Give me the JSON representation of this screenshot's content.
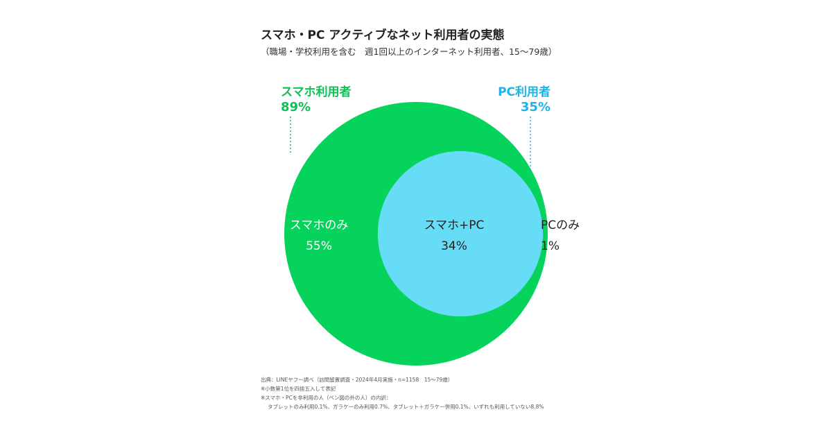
{
  "chart_data": {
    "type": "venn",
    "title": "スマホ・PC アクティブなネット利用者の実態",
    "subtitle": "（職場・学校利用を含む　週1回以上のインターネット利用者、15〜79歳）",
    "sets": [
      {
        "name": "スマホ利用者",
        "value_label": "89%",
        "value": 89,
        "color": "#06d35c"
      },
      {
        "name": "PC利用者",
        "value_label": "35%",
        "value": 35,
        "color": "#66dcf7"
      }
    ],
    "regions": [
      {
        "name": "スマホのみ",
        "value_label": "55%",
        "value": 55
      },
      {
        "name": "スマホ+PC",
        "value_label": "34%",
        "value": 34
      },
      {
        "name": "PCのみ",
        "value_label": "1%",
        "value": 1
      }
    ],
    "colors": {
      "smartphone": "#06d35c",
      "pc_overlap": "#66dcf7",
      "pc_only": "#1cb4e6",
      "smartphone_text": "#0cc056",
      "pc_text": "#1cb4e6"
    }
  },
  "notes": {
    "source": "出典：LINEヤフー調べ（訪問留置調査・2024年4月実施・n=1158　15〜79歳）",
    "rounding": "※小数第1位を四捨五入して表記",
    "breakdown_title": "※スマホ・PCを非利用の人（ベン図の外の人）の内訳：",
    "breakdown_detail": "タブレットのみ利用0.1%、ガラケーのみ利用0.7%、タブレット＋ガラケー併用0.1%、いずれも利用していない8.8%"
  }
}
